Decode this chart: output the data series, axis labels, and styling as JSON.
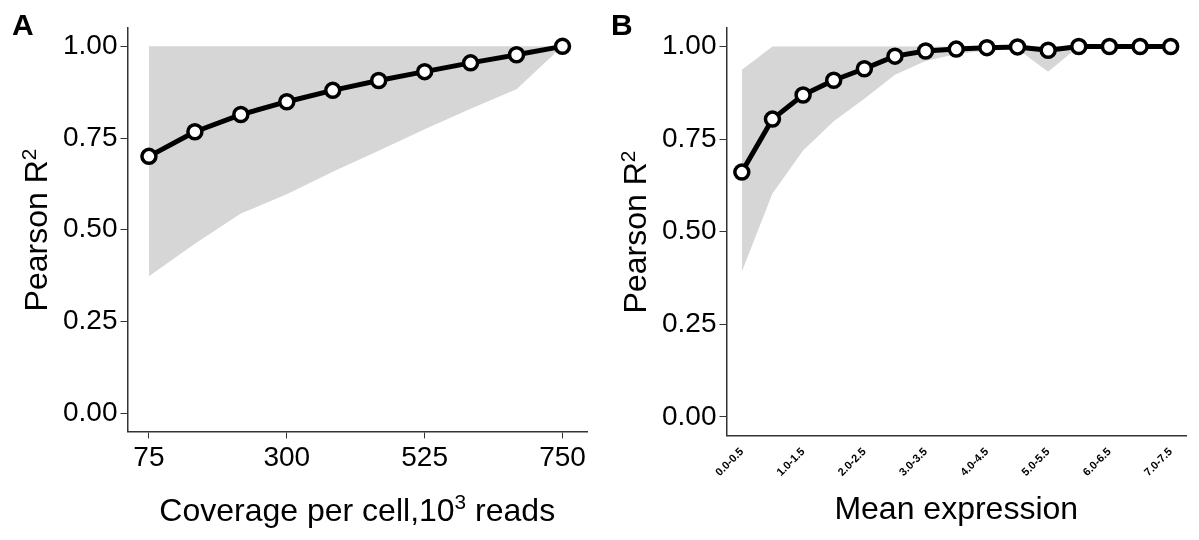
{
  "chart_data": [
    {
      "type": "line",
      "title": "A",
      "xlabel": "Coverage per cell,10$^{3}$ reads",
      "ylabel": "Pearson R$^{2}$",
      "x": [
        75,
        150,
        225,
        300,
        375,
        450,
        525,
        600,
        675,
        750
      ],
      "series": [
        {
          "color": "#000000",
          "values": [
            0.7,
            0.767,
            0.814,
            0.849,
            0.88,
            0.907,
            0.931,
            0.955,
            0.977,
            1.0
          ],
          "lower": [
            0.373,
            0.462,
            0.544,
            0.597,
            0.658,
            0.715,
            0.774,
            0.83,
            0.883,
            1.0
          ],
          "upper": [
            1.0,
            1.0,
            1.0,
            1.0,
            1.0,
            1.0,
            1.0,
            1.0,
            1.0,
            1.0
          ]
        }
      ],
      "xlim": [
        40,
        790
      ],
      "xticks": [
        75,
        300,
        525,
        750
      ],
      "ylim": [
        -0.05,
        1.05
      ],
      "yticks": [
        {
          "value": 0,
          "label": "0.00"
        },
        {
          "value": 0.25,
          "label": "0.25"
        },
        {
          "value": 0.5,
          "label": "0.50"
        },
        {
          "value": 0.75,
          "label": "0.75"
        },
        {
          "value": 1,
          "label": "1.00"
        }
      ],
      "grid": false,
      "legend": false,
      "marker": "circle",
      "line_style": "solid"
    },
    {
      "type": "line",
      "title": "B",
      "xlabel": "Mean expression",
      "ylabel": "Pearson R$^{2}$",
      "categories": [
        "0.0-0.5",
        null,
        "1.0-1.5",
        null,
        "2.0-2.5",
        null,
        "3.0-3.5",
        null,
        "4.0-4.5",
        null,
        "5.0-5.5",
        null,
        "6.0-6.5",
        null,
        "7.0-7.5"
      ],
      "series": [
        {
          "color": "#000000",
          "values": [
            0.661,
            0.804,
            0.869,
            0.909,
            0.94,
            0.974,
            0.988,
            0.993,
            0.997,
            0.999,
            0.99,
            1.0,
            1.0,
            1.0,
            1.0
          ],
          "lower": [
            0.392,
            0.603,
            0.719,
            0.798,
            0.859,
            0.924,
            0.961,
            0.98,
            0.989,
            0.993,
            0.932,
            1.0,
            1.0,
            1.0,
            1.0
          ],
          "upper": [
            0.937,
            1.0,
            1.0,
            1.0,
            1.0,
            1.0,
            1.0,
            1.0,
            1.0,
            1.0,
            1.0,
            1.0,
            1.0,
            1.0,
            1.0
          ]
        }
      ],
      "ylim": [
        -0.05,
        1.05
      ],
      "yticks": [
        {
          "value": 0,
          "label": "0.00"
        },
        {
          "value": 0.25,
          "label": "0.25"
        },
        {
          "value": 0.5,
          "label": "0.50"
        },
        {
          "value": 0.75,
          "label": "0.75"
        },
        {
          "value": 1,
          "label": "1.00"
        }
      ],
      "grid": false,
      "legend": false,
      "marker": "circle",
      "line_style": "solid"
    }
  ]
}
